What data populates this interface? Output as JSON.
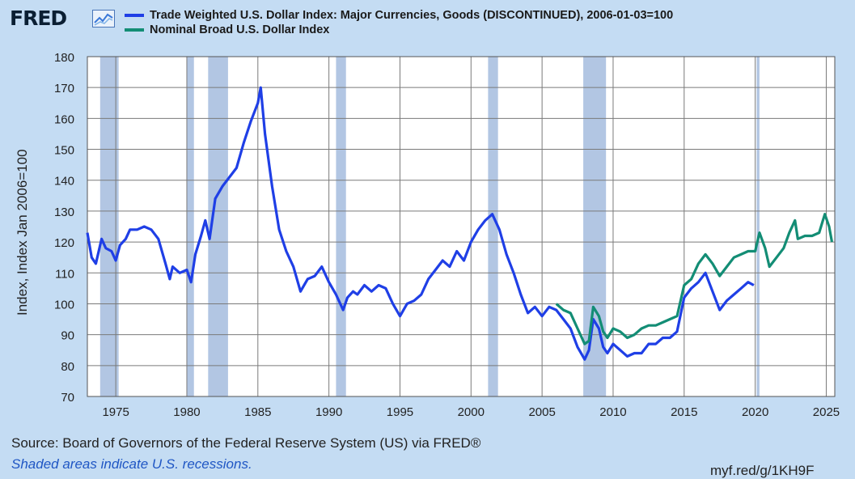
{
  "header": {
    "logo_text": "FRED",
    "logo_icon": "chart-trend-icon"
  },
  "legend": [
    {
      "label": "Trade Weighted U.S. Dollar Index: Major Currencies, Goods (DISCONTINUED), 2006-01-03=100",
      "color": "#1f3fe6"
    },
    {
      "label": "Nominal Broad U.S. Dollar Index",
      "color": "#138d75"
    }
  ],
  "footer": {
    "source": "Source: Board of Governors of the Federal Reserve System (US) via FRED®",
    "note": "Shaded areas indicate U.S. recessions.",
    "shortlink": "myf.red/g/1KH9F"
  },
  "chart_data": {
    "type": "line",
    "title": "",
    "xlabel": "",
    "ylabel": "Index, Index Jan 2006=100",
    "ylim": [
      70,
      180
    ],
    "xlim": [
      1973.0,
      2025.6
    ],
    "yticks": [
      70,
      80,
      90,
      100,
      110,
      120,
      130,
      140,
      150,
      160,
      170,
      180
    ],
    "xticks": [
      1975,
      1980,
      1985,
      1990,
      1995,
      2000,
      2005,
      2010,
      2015,
      2020,
      2025
    ],
    "grid": true,
    "legend_position": "top",
    "recessions": [
      [
        1973.9,
        1975.2
      ],
      [
        1980.0,
        1980.5
      ],
      [
        1981.5,
        1982.9
      ],
      [
        1990.5,
        1991.2
      ],
      [
        2001.2,
        2001.9
      ],
      [
        2007.9,
        2009.5
      ],
      [
        2020.1,
        2020.3
      ]
    ],
    "series": [
      {
        "name": "Trade Weighted U.S. Dollar Index: Major Currencies, Goods (DISCONTINUED), 2006-01-03=100",
        "color": "#1f3fe6",
        "x": [
          1973.0,
          1973.3,
          1973.6,
          1974.0,
          1974.3,
          1974.7,
          1975.0,
          1975.3,
          1975.7,
          1976.0,
          1976.5,
          1977.0,
          1977.5,
          1978.0,
          1978.5,
          1978.8,
          1979.0,
          1979.5,
          1980.0,
          1980.3,
          1980.6,
          1981.0,
          1981.3,
          1981.6,
          1982.0,
          1982.5,
          1983.0,
          1983.5,
          1984.0,
          1984.5,
          1985.0,
          1985.2,
          1985.5,
          1986.0,
          1986.5,
          1987.0,
          1987.5,
          1988.0,
          1988.5,
          1989.0,
          1989.5,
          1990.0,
          1990.5,
          1991.0,
          1991.3,
          1991.7,
          1992.0,
          1992.5,
          1993.0,
          1993.5,
          1994.0,
          1994.5,
          1995.0,
          1995.5,
          1996.0,
          1996.5,
          1997.0,
          1997.5,
          1998.0,
          1998.5,
          1999.0,
          1999.5,
          2000.0,
          2000.5,
          2001.0,
          2001.5,
          2002.0,
          2002.5,
          2003.0,
          2003.5,
          2004.0,
          2004.5,
          2005.0,
          2005.5,
          2006.0,
          2006.5,
          2007.0,
          2007.5,
          2008.0,
          2008.3,
          2008.6,
          2009.0,
          2009.3,
          2009.6,
          2010.0,
          2010.5,
          2011.0,
          2011.5,
          2012.0,
          2012.5,
          2013.0,
          2013.5,
          2014.0,
          2014.5,
          2015.0,
          2015.5,
          2016.0,
          2016.5,
          2017.0,
          2017.5,
          2018.0,
          2018.5,
          2019.0,
          2019.5,
          2019.9
        ],
        "y": [
          123,
          115,
          113,
          121,
          118,
          117,
          114,
          119,
          121,
          124,
          124,
          125,
          124,
          121,
          113,
          108,
          112,
          110,
          111,
          107,
          116,
          122,
          127,
          121,
          134,
          138,
          141,
          144,
          152,
          159,
          165,
          170,
          155,
          138,
          124,
          117,
          112,
          104,
          108,
          109,
          112,
          107,
          103,
          98,
          102,
          104,
          103,
          106,
          104,
          106,
          105,
          100,
          96,
          100,
          101,
          103,
          108,
          111,
          114,
          112,
          117,
          114,
          120,
          124,
          127,
          129,
          124,
          116,
          110,
          103,
          97,
          99,
          96,
          99,
          98,
          95,
          92,
          86,
          82,
          85,
          95,
          92,
          86,
          84,
          87,
          85,
          83,
          84,
          84,
          87,
          87,
          89,
          89,
          91,
          102,
          105,
          107,
          110,
          104,
          98,
          101,
          103,
          105,
          107,
          106
        ]
      },
      {
        "name": "Nominal Broad U.S. Dollar Index",
        "color": "#138d75",
        "x": [
          2006.0,
          2006.5,
          2007.0,
          2007.5,
          2008.0,
          2008.3,
          2008.6,
          2009.0,
          2009.3,
          2009.6,
          2010.0,
          2010.5,
          2011.0,
          2011.5,
          2012.0,
          2012.5,
          2013.0,
          2013.5,
          2014.0,
          2014.5,
          2015.0,
          2015.5,
          2016.0,
          2016.5,
          2017.0,
          2017.5,
          2018.0,
          2018.5,
          2019.0,
          2019.5,
          2020.0,
          2020.3,
          2020.7,
          2021.0,
          2021.5,
          2022.0,
          2022.4,
          2022.8,
          2023.0,
          2023.5,
          2024.0,
          2024.5,
          2024.9,
          2025.2,
          2025.4
        ],
        "y": [
          100,
          98,
          97,
          92,
          87,
          88,
          99,
          96,
          91,
          89,
          92,
          91,
          89,
          90,
          92,
          93,
          93,
          94,
          95,
          96,
          106,
          108,
          113,
          116,
          113,
          109,
          112,
          115,
          116,
          117,
          117,
          123,
          118,
          112,
          115,
          118,
          123,
          127,
          121,
          122,
          122,
          123,
          129,
          125,
          120
        ]
      }
    ]
  }
}
